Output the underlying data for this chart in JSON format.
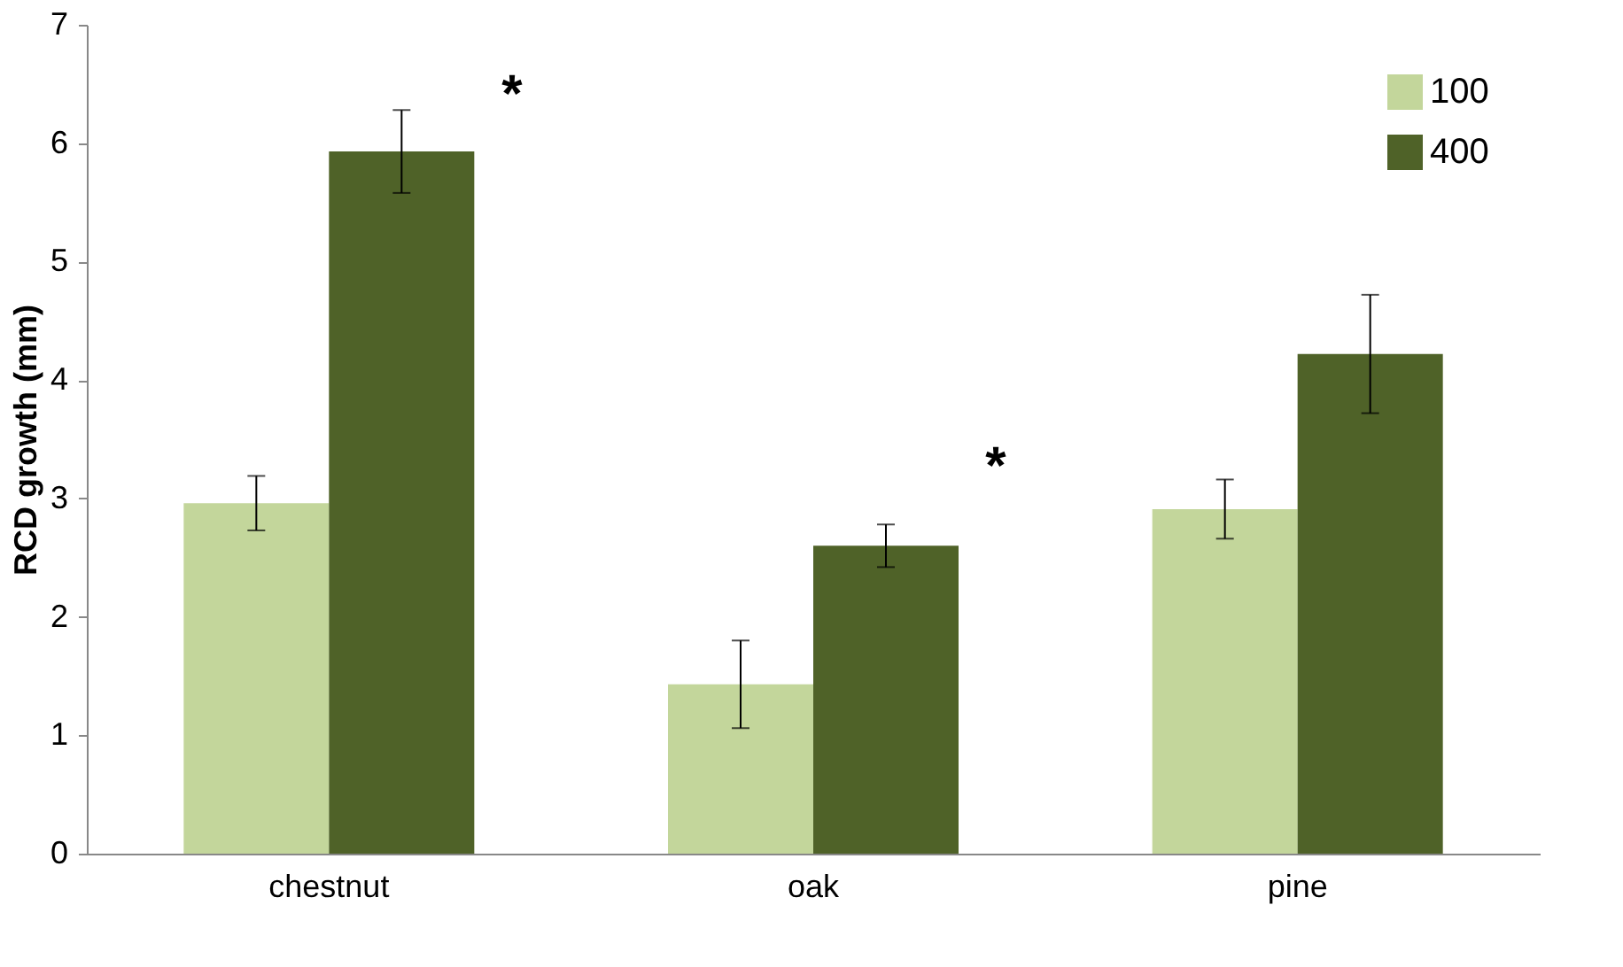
{
  "chart_data": {
    "type": "bar",
    "ylabel": "RCD growth (mm)",
    "categories": [
      "chestnut",
      "oak",
      "pine"
    ],
    "series": [
      {
        "name": "100",
        "color": "#c3d69b",
        "values": [
          2.96,
          1.43,
          2.91
        ],
        "errors": [
          0.23,
          0.37,
          0.25
        ]
      },
      {
        "name": "400",
        "color": "#4f6228",
        "values": [
          5.93,
          2.6,
          4.22
        ],
        "errors": [
          0.35,
          0.18,
          0.5
        ]
      }
    ],
    "ylim": [
      0,
      7
    ],
    "yticks": [
      0,
      1,
      2,
      3,
      4,
      5,
      6,
      7
    ],
    "grid": false,
    "legend": "top right",
    "annotations": [
      "*",
      "*"
    ]
  }
}
